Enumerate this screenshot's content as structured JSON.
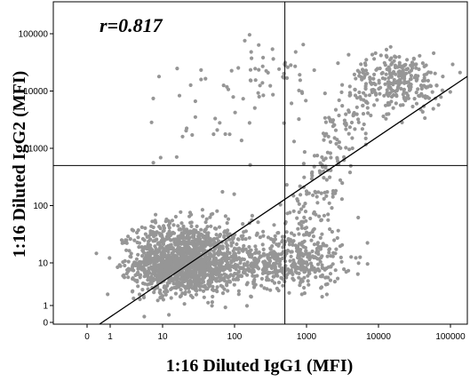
{
  "chart_data": {
    "type": "scatter",
    "title": "",
    "xlabel": "1:16 Diluted IgG1 (MFI)",
    "ylabel": "1:16 Diluted IgG2 (MFI)",
    "annotation": "r=0.817",
    "x_tick_labels": [
      "0",
      "1",
      "10",
      "100",
      "1000",
      "10000",
      "100000"
    ],
    "y_tick_labels": [
      "0",
      "1",
      "10",
      "100",
      "1000",
      "10000",
      "100000"
    ],
    "scale": "log (biexponential-style, 0 shown)",
    "xlim": [
      0,
      300000
    ],
    "ylim": [
      0,
      300000
    ],
    "grid": false,
    "point_color": "#969696",
    "gate_lines": {
      "x": 500,
      "y": 500
    },
    "fit_line": {
      "x1": 0.5,
      "y1": 0,
      "x2": 300000,
      "y2": 40000
    },
    "clusters": [
      {
        "name": "lower-left",
        "x_center": 20,
        "y_center": 10,
        "x_spread": 0.42,
        "y_spread": 0.35,
        "n": 1500
      },
      {
        "name": "lower-middle",
        "x_center": 500,
        "y_center": 10,
        "x_spread": 0.4,
        "y_spread": 0.3,
        "n": 450
      },
      {
        "name": "upper-right",
        "x_center": 20000,
        "y_center": 15000,
        "x_spread": 0.3,
        "y_spread": 0.25,
        "n": 260
      },
      {
        "name": "diagonal-band",
        "x_center": 2000,
        "y_center": 1000,
        "x_spread": 0.35,
        "y_spread": 0.8,
        "n": 220
      },
      {
        "name": "upper-left-sparse",
        "x_center": 60,
        "y_center": 5000,
        "x_spread": 0.7,
        "y_spread": 0.6,
        "n": 45
      },
      {
        "name": "upper-middle",
        "x_center": 350,
        "y_center": 20000,
        "x_spread": 0.4,
        "y_spread": 0.25,
        "n": 40
      }
    ]
  }
}
